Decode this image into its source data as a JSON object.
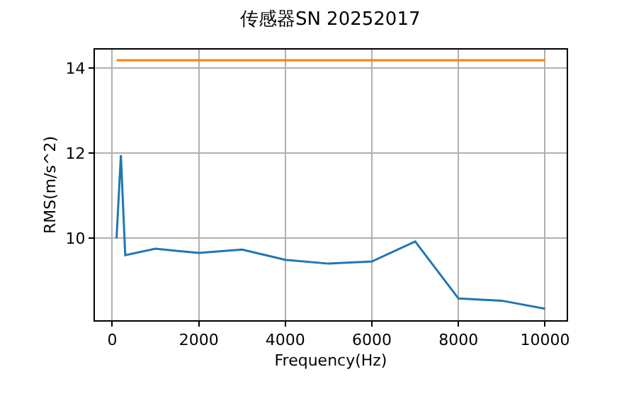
{
  "chart_data": {
    "type": "line",
    "title": "传感器SN 20252017",
    "xlabel": "Frequency(Hz)",
    "ylabel": "RMS(m/s^2)",
    "xlim": [
      -400,
      10500
    ],
    "xticks": [
      0,
      2000,
      4000,
      6000,
      8000,
      10000
    ],
    "ylim": [
      8.07,
      14.43
    ],
    "yticks": [
      10,
      12,
      14
    ],
    "grid": true,
    "series": [
      {
        "color": "#1f77b4",
        "x": [
          100,
          200,
          300,
          1000,
          2000,
          3000,
          4000,
          5000,
          6000,
          7000,
          8000,
          9000,
          10000
        ],
        "values": [
          10.0,
          11.95,
          9.6,
          9.75,
          9.65,
          9.73,
          9.49,
          9.4,
          9.45,
          9.92,
          8.58,
          8.53,
          8.34
        ]
      },
      {
        "color": "#ff7f0e",
        "x": [
          100,
          10000
        ],
        "values": [
          14.18,
          14.18
        ]
      }
    ]
  }
}
